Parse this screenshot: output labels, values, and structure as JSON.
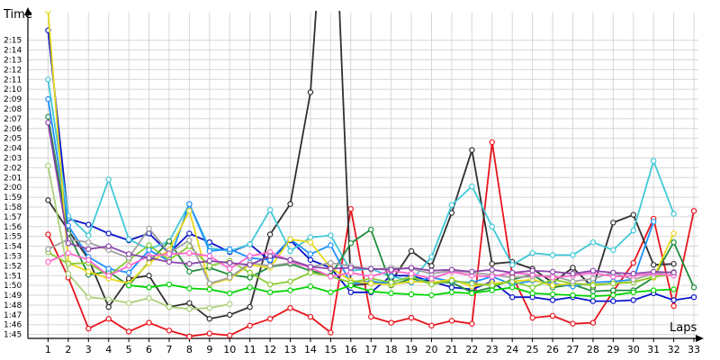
{
  "chart_data": {
    "type": "line",
    "xlabel": "Laps",
    "ylabel": "Time",
    "x": [
      1,
      2,
      3,
      4,
      5,
      6,
      7,
      8,
      9,
      10,
      11,
      12,
      13,
      14,
      15,
      16,
      17,
      18,
      19,
      20,
      21,
      22,
      23,
      24,
      25,
      26,
      27,
      28,
      29,
      30,
      31,
      32,
      33
    ],
    "xlim": [
      0,
      33.4
    ],
    "ylim": [
      104.6,
      138
    ],
    "grid": true,
    "y_ticks": [
      {
        "label": "1:45",
        "value": 105
      },
      {
        "label": "1:46",
        "value": 106
      },
      {
        "label": "1:47",
        "value": 107
      },
      {
        "label": "1:48",
        "value": 108
      },
      {
        "label": "1:49",
        "value": 109
      },
      {
        "label": "1:50",
        "value": 110
      },
      {
        "label": "1:51",
        "value": 111
      },
      {
        "label": "1:52",
        "value": 112
      },
      {
        "label": "1:53",
        "value": 113
      },
      {
        "label": "1:54",
        "value": 114
      },
      {
        "label": "1:55",
        "value": 115
      },
      {
        "label": "1:56",
        "value": 116
      },
      {
        "label": "1:57",
        "value": 117
      },
      {
        "label": "1:58",
        "value": 118
      },
      {
        "label": "1:59",
        "value": 119
      },
      {
        "label": "2:00",
        "value": 120
      },
      {
        "label": "2:01",
        "value": 121
      },
      {
        "label": "2:02",
        "value": 122
      },
      {
        "label": "2:03",
        "value": 123
      },
      {
        "label": "2:04",
        "value": 124
      },
      {
        "label": "2:05",
        "value": 125
      },
      {
        "label": "2:06",
        "value": 126
      },
      {
        "label": "2:07",
        "value": 127
      },
      {
        "label": "2:08",
        "value": 128
      },
      {
        "label": "2:09",
        "value": 129
      },
      {
        "label": "2:10",
        "value": 130
      },
      {
        "label": "2:11",
        "value": 131
      },
      {
        "label": "2:12",
        "value": 132
      },
      {
        "label": "2:13",
        "value": 133
      },
      {
        "label": "2:14",
        "value": 134
      },
      {
        "label": "2:15",
        "value": 135
      }
    ],
    "series": [
      {
        "color": "#e8141c",
        "values": [
          115.2,
          110.8,
          105.6,
          106.6,
          105.3,
          106.2,
          105.4,
          104.8,
          105.1,
          104.9,
          105.9,
          106.6,
          107.7,
          106.8,
          105.2,
          117.8,
          106.8,
          106.2,
          106.7,
          105.9,
          106.4,
          106.1,
          124.6,
          111.0,
          106.7,
          106.9,
          106.1,
          106.2,
          109.4,
          112.3,
          116.8,
          107.9,
          117.6
        ]
      },
      {
        "color": "#303030",
        "values": [
          118.7,
          115.6,
          112.7,
          107.8,
          110.7,
          111.0,
          107.8,
          108.2,
          106.6,
          107.0,
          107.8,
          115.2,
          118.3,
          129.7,
          160,
          110.0,
          110.2,
          110.4,
          113.5,
          112.0,
          117.4,
          123.8,
          112.2,
          112.4,
          111.7,
          110.3,
          111.8,
          109.8,
          116.4,
          117.2,
          112.1,
          112.2,
          null
        ]
      },
      {
        "color": "#0a14c8",
        "values": [
          136.0,
          116.8,
          116.2,
          115.3,
          114.6,
          115.3,
          113.3,
          115.3,
          114.4,
          113.4,
          114.2,
          112.5,
          114.6,
          112.6,
          111.8,
          109.3,
          109.3,
          111.0,
          111.0,
          110.4,
          109.8,
          109.6,
          110.4,
          108.8,
          108.8,
          108.5,
          108.8,
          108.4,
          108.4,
          108.5,
          109.2,
          108.5,
          108.8
        ]
      },
      {
        "color": "#40c8d8",
        "values": [
          131.0,
          117.1,
          115.1,
          120.8,
          114.7,
          113.7,
          114.5,
          118.3,
          113.8,
          113.5,
          114.2,
          117.7,
          113.5,
          114.9,
          115.1,
          111.5,
          111.7,
          110.9,
          110.5,
          112.9,
          118.2,
          120.1,
          116.0,
          112.1,
          113.3,
          113.1,
          113.1,
          114.4,
          113.6,
          115.6,
          122.7,
          117.3,
          null
        ]
      },
      {
        "color": "#1f8c3a",
        "values": [
          127.2,
          115.3,
          111.1,
          111.4,
          110.0,
          112.4,
          114.5,
          111.4,
          111.8,
          111.1,
          110.8,
          111.9,
          112.2,
          111.5,
          111.0,
          114.3,
          115.7,
          110.0,
          110.7,
          110.3,
          110.3,
          109.3,
          109.8,
          110.6,
          111.1,
          109.8,
          110.1,
          109.4,
          109.5,
          109.5,
          110.8,
          114.4,
          109.8
        ]
      },
      {
        "color": "#1e90ff",
        "values": [
          129.0,
          116.1,
          112.9,
          111.7,
          111.3,
          113.6,
          112.5,
          118.3,
          113.5,
          113.7,
          112.8,
          112.6,
          114.7,
          113.2,
          114.1,
          110.2,
          110.4,
          110.2,
          110.3,
          110.8,
          110.4,
          110.3,
          110.9,
          110.1,
          110.5,
          110.2,
          109.9,
          110.3,
          110.4,
          110.6,
          116.5,
          null,
          null
        ]
      },
      {
        "color": "#e8d81a",
        "values": [
          138.0,
          112.3,
          111.4,
          110.7,
          110.2,
          112.3,
          113.6,
          117.6,
          110.1,
          110.7,
          112.1,
          111.8,
          114.7,
          114.4,
          111.8,
          110.5,
          110.2,
          110.1,
          110.4,
          110.3,
          110.6,
          109.9,
          110.2,
          110.4,
          110.6,
          110.0,
          110.2,
          110.1,
          110.2,
          110.4,
          110.8,
          115.3,
          null
        ]
      },
      {
        "color": "#88cc33",
        "values": [
          113.4,
          112.2,
          112.3,
          111.0,
          112.6,
          114.1,
          112.6,
          114.0,
          112.0,
          112.5,
          111.3,
          110.1,
          110.4,
          111.3,
          110.9,
          110.3,
          110.7,
          110.3,
          110.9,
          110.1,
          110.5,
          110.2,
          110.0,
          110.4,
          109.8,
          110.6,
          110.2,
          110.0,
          110.2,
          110.3,
          110.9,
          111.1,
          null
        ]
      },
      {
        "color": "#a0a0a0",
        "values": [
          113.7,
          114.7,
          114.4,
          113.6,
          112.8,
          115.8,
          113.3,
          114.6,
          110.2,
          110.8,
          112.3,
          112.0,
          112.3,
          111.9,
          112.3,
          112.0,
          111.6,
          111.8,
          111.7,
          111.2,
          111.5,
          111.3,
          111.1,
          110.8,
          110.9,
          111.0,
          110.4,
          110.7,
          111.3,
          110.6,
          111.2,
          111.4,
          null
        ]
      },
      {
        "color": "#ff66cc",
        "values": [
          112.4,
          113.3,
          112.6,
          111.0,
          112.0,
          113.0,
          113.2,
          113.3,
          113.0,
          111.7,
          113.0,
          113.4,
          112.5,
          111.8,
          110.9,
          111.3,
          110.9,
          111.5,
          111.2,
          110.7,
          111.4,
          111.0,
          110.9,
          111.3,
          111.1,
          110.8,
          111.0,
          111.3,
          110.9,
          111.0,
          111.2,
          111.0,
          null
        ]
      },
      {
        "color": "#8844aa",
        "values": [
          126.6,
          114.3,
          113.7,
          114.0,
          113.2,
          112.8,
          112.4,
          112.2,
          112.5,
          112.3,
          112.1,
          113.0,
          112.6,
          111.9,
          111.7,
          111.8,
          111.7,
          111.6,
          111.8,
          111.5,
          111.6,
          111.4,
          111.6,
          111.3,
          111.5,
          111.4,
          111.2,
          111.5,
          111.3,
          111.2,
          111.4,
          111.3,
          null
        ]
      },
      {
        "color": "#aad07a",
        "values": [
          122.2,
          111.2,
          108.8,
          108.6,
          108.2,
          108.7,
          107.8,
          107.6,
          107.7,
          108.1,
          null,
          null,
          null,
          null,
          null,
          null,
          null,
          null,
          null,
          null,
          null,
          null,
          null,
          null,
          null,
          null,
          null,
          null,
          null,
          null,
          null,
          null,
          null
        ]
      },
      {
        "color": "#00d400",
        "values": [
          null,
          null,
          null,
          null,
          110.0,
          109.8,
          110.1,
          109.7,
          109.6,
          109.2,
          109.8,
          109.3,
          109.5,
          109.9,
          109.3,
          110.0,
          109.4,
          109.2,
          109.1,
          109.0,
          109.3,
          109.2,
          109.5,
          109.8,
          109.2,
          109.1,
          109.0,
          108.9,
          109.0,
          109.3,
          109.5,
          109.6,
          null
        ]
      }
    ]
  }
}
